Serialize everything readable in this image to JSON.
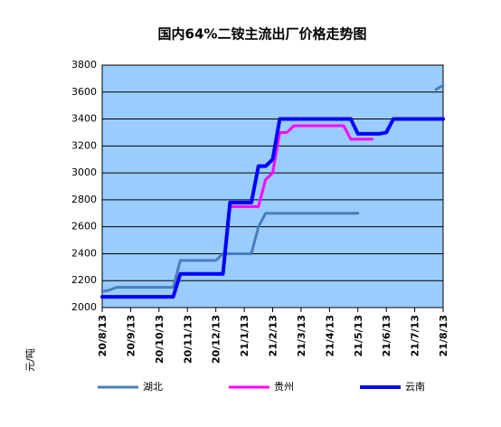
{
  "chart_data": {
    "type": "line",
    "title": "国内64%二铵主流出厂价格走势图",
    "y_label": "元/吨",
    "categories": [
      "20/8/13",
      null,
      null,
      null,
      "20/9/13",
      null,
      null,
      null,
      "20/10/13",
      null,
      null,
      null,
      "20/11/13",
      null,
      null,
      null,
      "20/12/13",
      null,
      null,
      null,
      "21/1/13",
      null,
      null,
      null,
      "21/2/13",
      null,
      null,
      null,
      "21/3/13",
      null,
      null,
      null,
      "21/4/13",
      null,
      null,
      null,
      "21/5/13",
      null,
      null,
      null,
      "21/6/13",
      null,
      null,
      null,
      "21/7/13",
      null,
      null,
      null,
      "21/8/13"
    ],
    "series": [
      {
        "name": "湖北",
        "color": "#4a7ebb",
        "width": 3,
        "values": [
          2120,
          2130,
          2150,
          2150,
          2150,
          2150,
          2150,
          2150,
          2150,
          2150,
          2150,
          2350,
          2350,
          2350,
          2350,
          2350,
          2350,
          2400,
          2400,
          2400,
          2400,
          2400,
          2600,
          2700,
          2700,
          2700,
          2700,
          2700,
          2700,
          2700,
          2700,
          2700,
          2700,
          2700,
          2700,
          2700,
          2700,
          null,
          null,
          null,
          null,
          null,
          null,
          null,
          null,
          null,
          null,
          3620,
          3650
        ]
      },
      {
        "name": "贵州",
        "color": "#ff00ff",
        "width": 3,
        "values": [
          2080,
          2080,
          2080,
          2080,
          2080,
          2080,
          2080,
          2080,
          2080,
          2080,
          2080,
          2250,
          2250,
          2250,
          2250,
          2250,
          2250,
          2250,
          2750,
          2750,
          2750,
          2750,
          2750,
          2950,
          3000,
          3300,
          3300,
          3350,
          3350,
          3350,
          3350,
          3350,
          3350,
          3350,
          3350,
          3250,
          3250,
          3250,
          3250,
          null,
          null,
          null,
          3400,
          null,
          3400,
          null,
          null,
          3400,
          3400
        ]
      },
      {
        "name": "云南",
        "color": "#0000ff",
        "width": 4,
        "values": [
          2080,
          2080,
          2080,
          2080,
          2080,
          2080,
          2080,
          2080,
          2080,
          2080,
          2080,
          2250,
          2250,
          2250,
          2250,
          2250,
          2250,
          2250,
          2780,
          2780,
          2780,
          2780,
          3050,
          3050,
          3100,
          3400,
          3400,
          3400,
          3400,
          3400,
          3400,
          3400,
          3400,
          3400,
          3400,
          3400,
          3290,
          3290,
          3290,
          3290,
          3300,
          3400,
          3400,
          3400,
          3400,
          3400,
          3400,
          3400,
          3400
        ]
      }
    ],
    "ylim": [
      2000,
      3800
    ],
    "yticks": [
      2000,
      2200,
      2400,
      2600,
      2800,
      3000,
      3200,
      3400,
      3600,
      3800
    ],
    "grid": true,
    "background": "#99ccff",
    "legend": "bottom"
  }
}
